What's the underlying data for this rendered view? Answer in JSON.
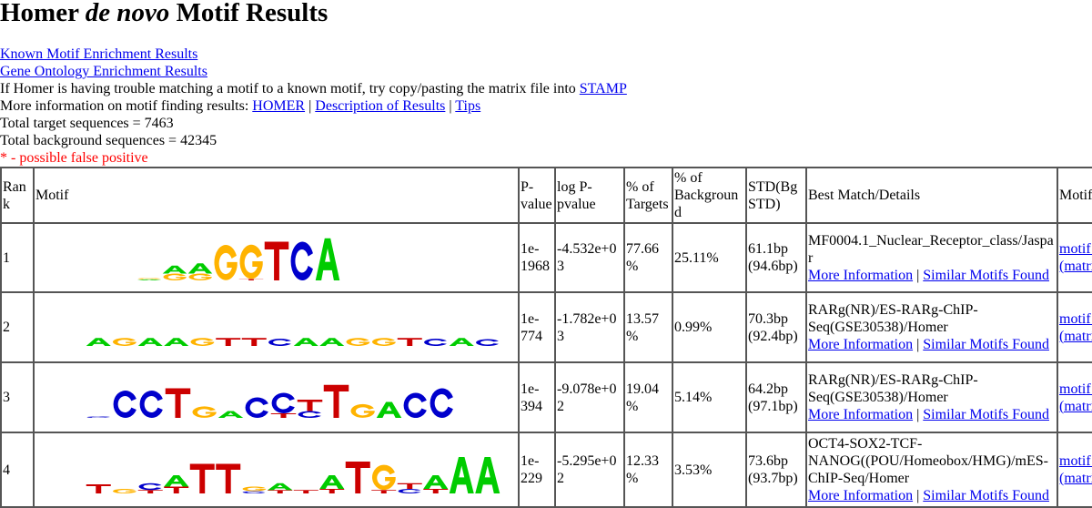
{
  "title": {
    "prefix": "Homer ",
    "italic": "de novo",
    "suffix": " Motif Results"
  },
  "links": {
    "known": "Known Motif Enrichment Results",
    "go": "Gene Ontology Enrichment Results"
  },
  "stamp_text": "If Homer is having trouble matching a motif to a known motif, try copy/pasting the matrix file into ",
  "stamp_link": "STAMP",
  "more_info_text": "More information on motif finding results: ",
  "more_info_links": {
    "homer": "HOMER",
    "description": "Description of Results",
    "tips": "Tips"
  },
  "separator": " | ",
  "total_target": "Total target sequences = 7463",
  "total_background": "Total background sequences = 42345",
  "false_positive_note": "* - possible false positive",
  "colors": {
    "A": "#00cc00",
    "C": "#0000cc",
    "G": "#ffb300",
    "T": "#cc0000",
    "link": "#0000ee",
    "note": "#ff0000"
  },
  "table": {
    "headers": [
      "Rank",
      "Motif",
      "P-value",
      "log P-pvalue",
      "% of Targets",
      "% of Background",
      "STD(Bg STD)",
      "Best Match/Details",
      "Motif File"
    ],
    "more_info_label": "More Information",
    "similar_label": "Similar Motifs Found",
    "file_label": "motif file (matrix)",
    "rows": [
      {
        "rank": "1",
        "pvalue": "1e-1968",
        "logp": "-4.532e+03",
        "targets": "77.66%",
        "background": "25.11%",
        "std": "61.1bp (94.6bp)",
        "best_match": "MF0004.1_Nuclear_Receptor_class/Jaspar",
        "logo": [
          [
            [
              "A",
              0.05
            ],
            [
              "G",
              0.05
            ]
          ],
          [
            [
              "G",
              0.3
            ],
            [
              "A",
              0.35
            ]
          ],
          [
            [
              "G",
              0.3
            ],
            [
              "A",
              0.45
            ]
          ],
          [
            [
              "G",
              1.55
            ]
          ],
          [
            [
              "T",
              0.06
            ],
            [
              "G",
              1.5
            ]
          ],
          [
            [
              "T",
              1.7
            ]
          ],
          [
            [
              "C",
              1.7
            ]
          ],
          [
            [
              "A",
              1.85
            ]
          ]
        ]
      },
      {
        "rank": "2",
        "pvalue": "1e-774",
        "logp": "-1.782e+03",
        "targets": "13.57%",
        "background": "0.99%",
        "std": "70.3bp (92.4bp)",
        "best_match": "RARg(NR)/ES-RARg-ChIP-Seq(GSE30538)/Homer",
        "logo": [
          [
            [
              "A",
              0.35
            ]
          ],
          [
            [
              "G",
              0.35
            ]
          ],
          [
            [
              "A",
              0.35
            ]
          ],
          [
            [
              "A",
              0.35
            ]
          ],
          [
            [
              "G",
              0.35
            ]
          ],
          [
            [
              "T",
              0.35
            ]
          ],
          [
            [
              "T",
              0.35
            ]
          ],
          [
            [
              "C",
              0.32
            ]
          ],
          [
            [
              "A",
              0.35
            ]
          ],
          [
            [
              "A",
              0.35
            ]
          ],
          [
            [
              "G",
              0.35
            ]
          ],
          [
            [
              "G",
              0.35
            ]
          ],
          [
            [
              "T",
              0.35
            ]
          ],
          [
            [
              "C",
              0.32
            ]
          ],
          [
            [
              "A",
              0.35
            ]
          ],
          [
            [
              "C",
              0.3
            ]
          ]
        ]
      },
      {
        "rank": "3",
        "pvalue": "1e-394",
        "logp": "-9.078e+02",
        "targets": "19.04%",
        "background": "5.14%",
        "std": "64.2bp (97.1bp)",
        "best_match": "RARg(NR)/ES-RARg-ChIP-Seq(GSE30538)/Homer",
        "logo": [
          [
            [
              "C",
              0.06
            ]
          ],
          [
            [
              "C",
              1.2
            ]
          ],
          [
            [
              "C",
              1.2
            ]
          ],
          [
            [
              "T",
              1.3
            ]
          ],
          [
            [
              "G",
              0.5
            ]
          ],
          [
            [
              "A",
              0.3
            ]
          ],
          [
            [
              "C",
              0.9
            ]
          ],
          [
            [
              "T",
              0.2
            ],
            [
              "C",
              0.9
            ]
          ],
          [
            [
              "C",
              0.3
            ],
            [
              "T",
              0.5
            ]
          ],
          [
            [
              "T",
              1.45
            ]
          ],
          [
            [
              "G",
              0.6
            ]
          ],
          [
            [
              "A",
              0.7
            ]
          ],
          [
            [
              "C",
              1.1
            ]
          ],
          [
            [
              "C",
              1.3
            ]
          ]
        ]
      },
      {
        "rank": "4",
        "pvalue": "1e-229",
        "logp": "-5.295e+02",
        "targets": "12.33%",
        "background": "3.53%",
        "std": "73.6bp (93.7bp)",
        "best_match": "OCT4-SOX2-TCF-NANOG((POU/Homeobox/HMG)/mES-ChIP-Seq/Homer",
        "logo": [
          [
            [
              "T",
              0.4
            ]
          ],
          [
            [
              "G",
              0.2
            ]
          ],
          [
            [
              "T",
              0.15
            ],
            [
              "C",
              0.3
            ]
          ],
          [
            [
              "T",
              0.3
            ],
            [
              "A",
              0.5
            ]
          ],
          [
            [
              "T",
              1.3
            ]
          ],
          [
            [
              "T",
              1.3
            ]
          ],
          [
            [
              "C",
              0.1
            ],
            [
              "G",
              0.2
            ]
          ],
          [
            [
              "T",
              0.15
            ],
            [
              "A",
              0.3
            ]
          ],
          [
            [
              "T",
              0.15
            ]
          ],
          [
            [
              "T",
              0.2
            ],
            [
              "A",
              0.6
            ]
          ],
          [
            [
              "T",
              1.4
            ]
          ],
          [
            [
              "T",
              0.15
            ],
            [
              "G",
              1.1
            ]
          ],
          [
            [
              "C",
              0.2
            ],
            [
              "T",
              0.25
            ]
          ],
          [
            [
              "T",
              0.2
            ],
            [
              "A",
              0.6
            ]
          ],
          [
            [
              "A",
              1.6
            ]
          ],
          [
            [
              "A",
              1.6
            ]
          ]
        ]
      }
    ]
  }
}
